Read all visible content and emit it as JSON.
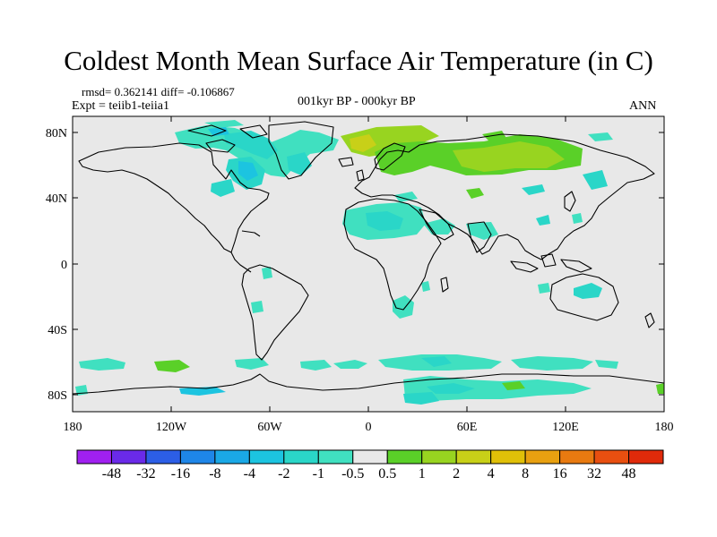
{
  "title": "Coldest Month Mean Surface Air Temperature (in C)",
  "stats_line": "rmsd= 0.362141 diff= -0.106867",
  "experiment": "Expt = teiib1-teiia1",
  "period": "001kyr BP - 000kyr BP",
  "season": "ANN",
  "map": {
    "background_color": "#e8e8e8",
    "lat_labels": [
      "80N",
      "40N",
      "0",
      "40S",
      "80S"
    ],
    "lon_labels": [
      "180",
      "120W",
      "60W",
      "0",
      "60E",
      "120E",
      "180"
    ]
  },
  "colorbar": {
    "colors": [
      "#a020f0",
      "#6a2ae8",
      "#2c5ee6",
      "#1e86e8",
      "#1aa8e6",
      "#1cc4e0",
      "#2ad6c8",
      "#40e0c0",
      "#e8e8e8",
      "#5ad028",
      "#98d420",
      "#c8d018",
      "#e0c008",
      "#e8a010",
      "#e87a10",
      "#e84f10",
      "#e02a0a"
    ],
    "labels": [
      "-48",
      "-32",
      "-16",
      "-8",
      "-4",
      "-2",
      "-1",
      "-0.5",
      "0.5",
      "1",
      "2",
      "4",
      "8",
      "16",
      "32",
      "48"
    ]
  }
}
